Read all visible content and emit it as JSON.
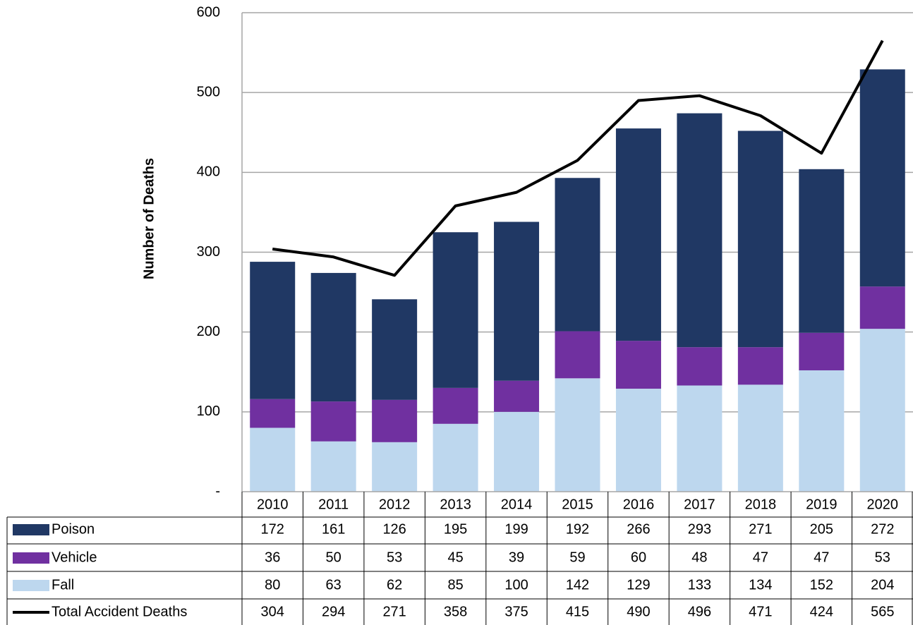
{
  "chart_data": {
    "type": "bar",
    "stacked": true,
    "y_label": "Number of Deaths",
    "categories": [
      "2010",
      "2011",
      "2012",
      "2013",
      "2014",
      "2015",
      "2016",
      "2017",
      "2018",
      "2019",
      "2020"
    ],
    "series": [
      {
        "name": "Poison",
        "color": "#203864",
        "values": [
          172,
          161,
          126,
          195,
          199,
          192,
          266,
          293,
          271,
          205,
          272
        ]
      },
      {
        "name": "Vehicle",
        "color": "#7030a0",
        "values": [
          36,
          50,
          53,
          45,
          39,
          59,
          60,
          48,
          47,
          47,
          53
        ]
      },
      {
        "name": "Fall",
        "color": "#bdd7ee",
        "values": [
          80,
          63,
          62,
          85,
          100,
          142,
          129,
          133,
          134,
          152,
          204
        ]
      },
      {
        "name": "Total Accident Deaths",
        "color": "#000000",
        "type": "line",
        "values": [
          304,
          294,
          271,
          358,
          375,
          415,
          490,
          496,
          471,
          424,
          565
        ]
      }
    ],
    "ylim": [
      0,
      600
    ],
    "yticks": [
      {
        "value": 0,
        "label": "-"
      },
      100,
      200,
      300,
      400,
      500,
      600
    ],
    "grid": true,
    "data_table": true
  }
}
